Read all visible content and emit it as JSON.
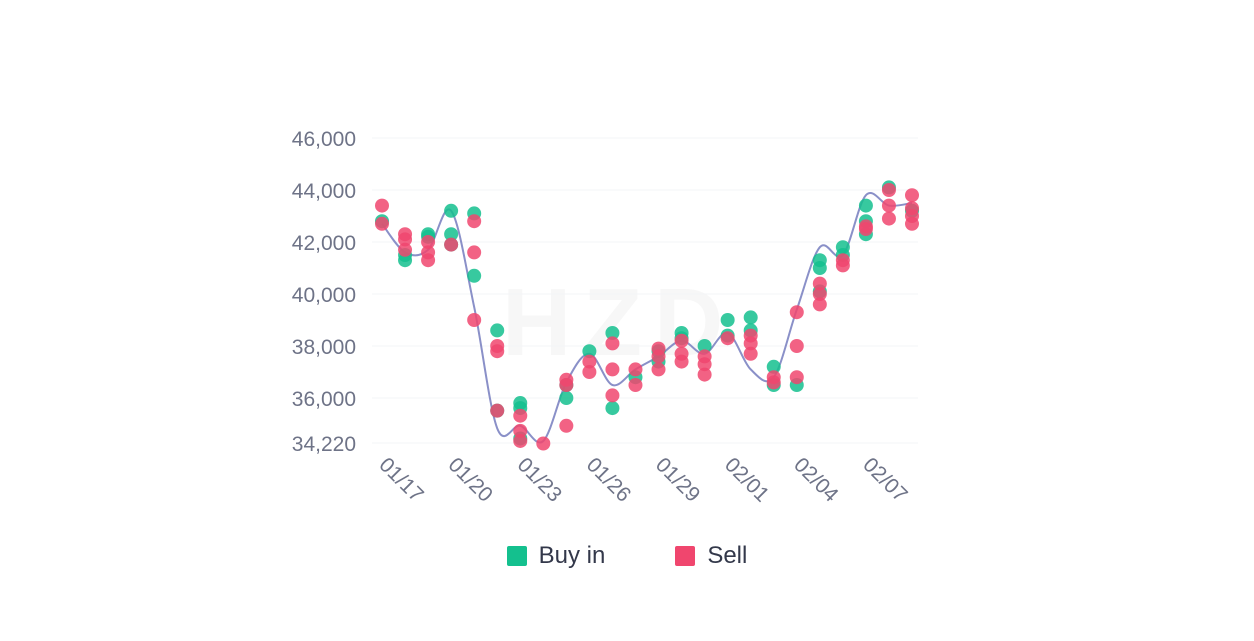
{
  "colors": {
    "buy": "#14c08e",
    "sell": "#f0466e",
    "line": "#8a90c8",
    "axis_text": "#6e7387"
  },
  "watermark": "HZD",
  "legend": [
    {
      "label": "Buy in",
      "color": "#14c08e"
    },
    {
      "label": "Sell",
      "color": "#f0466e"
    }
  ],
  "chart_data": {
    "type": "scatter",
    "title": "",
    "xlabel": "",
    "ylabel": "",
    "ylim": [
      34220,
      46000
    ],
    "y_ticks": [
      "34,220",
      "36,000",
      "38,000",
      "40,000",
      "42,000",
      "44,000",
      "46,000"
    ],
    "y_tick_values": [
      34220,
      36000,
      38000,
      40000,
      42000,
      44000,
      46000
    ],
    "x_tick_labels": [
      "01/17",
      "01/20",
      "01/23",
      "01/26",
      "01/29",
      "02/01",
      "02/04",
      "02/07"
    ],
    "x_tick_index": [
      0,
      3,
      6,
      9,
      12,
      15,
      18,
      21
    ],
    "dates": [
      "01/17",
      "01/18",
      "01/19",
      "01/20",
      "01/21",
      "01/22",
      "01/23",
      "01/24",
      "01/25",
      "01/26",
      "01/27",
      "01/28",
      "01/29",
      "01/30",
      "01/31",
      "02/01",
      "02/02",
      "02/03",
      "02/04",
      "02/05",
      "02/06",
      "02/07",
      "02/08",
      "02/09"
    ],
    "grid": true,
    "legend_position": "bottom-center",
    "price_line": [
      42700,
      41600,
      41700,
      43200,
      39500,
      34800,
      34900,
      34300,
      36600,
      37700,
      36500,
      37100,
      37600,
      38200,
      37700,
      38500,
      37100,
      36800,
      39400,
      41800,
      41500,
      43800,
      43400,
      43500
    ],
    "series": [
      {
        "name": "Buy in",
        "points": [
          [
            0,
            42800
          ],
          [
            1,
            41300
          ],
          [
            1,
            41500
          ],
          [
            2,
            42200
          ],
          [
            2,
            42300
          ],
          [
            3,
            43200
          ],
          [
            3,
            42300
          ],
          [
            3,
            41900
          ],
          [
            4,
            43100
          ],
          [
            4,
            40700
          ],
          [
            5,
            38600
          ],
          [
            5,
            35500
          ],
          [
            6,
            35800
          ],
          [
            6,
            35600
          ],
          [
            6,
            34400
          ],
          [
            8,
            36000
          ],
          [
            8,
            36500
          ],
          [
            9,
            37800
          ],
          [
            10,
            38500
          ],
          [
            10,
            35600
          ],
          [
            11,
            36800
          ],
          [
            12,
            37800
          ],
          [
            12,
            37400
          ],
          [
            13,
            38500
          ],
          [
            13,
            38300
          ],
          [
            14,
            38000
          ],
          [
            15,
            39000
          ],
          [
            15,
            38400
          ],
          [
            16,
            39100
          ],
          [
            16,
            38600
          ],
          [
            17,
            37200
          ],
          [
            17,
            36500
          ],
          [
            18,
            36500
          ],
          [
            19,
            41300
          ],
          [
            19,
            41000
          ],
          [
            19,
            40100
          ],
          [
            20,
            41800
          ],
          [
            20,
            41500
          ],
          [
            21,
            43400
          ],
          [
            21,
            42800
          ],
          [
            21,
            42300
          ],
          [
            22,
            44100
          ],
          [
            23,
            43200
          ]
        ]
      },
      {
        "name": "Sell",
        "points": [
          [
            0,
            43400
          ],
          [
            0,
            42700
          ],
          [
            1,
            42300
          ],
          [
            1,
            42100
          ],
          [
            1,
            41700
          ],
          [
            2,
            42000
          ],
          [
            2,
            41600
          ],
          [
            2,
            41300
          ],
          [
            3,
            41900
          ],
          [
            4,
            42800
          ],
          [
            4,
            41600
          ],
          [
            4,
            39000
          ],
          [
            5,
            38000
          ],
          [
            5,
            37800
          ],
          [
            5,
            35500
          ],
          [
            6,
            35300
          ],
          [
            6,
            34700
          ],
          [
            6,
            34300
          ],
          [
            7,
            34200
          ],
          [
            8,
            36700
          ],
          [
            8,
            36500
          ],
          [
            8,
            34900
          ],
          [
            9,
            37400
          ],
          [
            9,
            37000
          ],
          [
            10,
            38100
          ],
          [
            10,
            37100
          ],
          [
            10,
            36100
          ],
          [
            11,
            37100
          ],
          [
            11,
            36500
          ],
          [
            12,
            37900
          ],
          [
            12,
            37600
          ],
          [
            12,
            37100
          ],
          [
            13,
            38200
          ],
          [
            13,
            37700
          ],
          [
            13,
            37400
          ],
          [
            14,
            37600
          ],
          [
            14,
            37300
          ],
          [
            14,
            36900
          ],
          [
            15,
            38300
          ],
          [
            16,
            38400
          ],
          [
            16,
            38100
          ],
          [
            16,
            37700
          ],
          [
            17,
            36800
          ],
          [
            17,
            36600
          ],
          [
            18,
            39300
          ],
          [
            18,
            38000
          ],
          [
            18,
            36800
          ],
          [
            19,
            40400
          ],
          [
            19,
            40000
          ],
          [
            19,
            39600
          ],
          [
            20,
            41300
          ],
          [
            20,
            41100
          ],
          [
            21,
            42600
          ],
          [
            21,
            42500
          ],
          [
            22,
            44000
          ],
          [
            22,
            43400
          ],
          [
            22,
            42900
          ],
          [
            23,
            43800
          ],
          [
            23,
            43300
          ],
          [
            23,
            43000
          ],
          [
            23,
            42700
          ]
        ]
      }
    ]
  }
}
